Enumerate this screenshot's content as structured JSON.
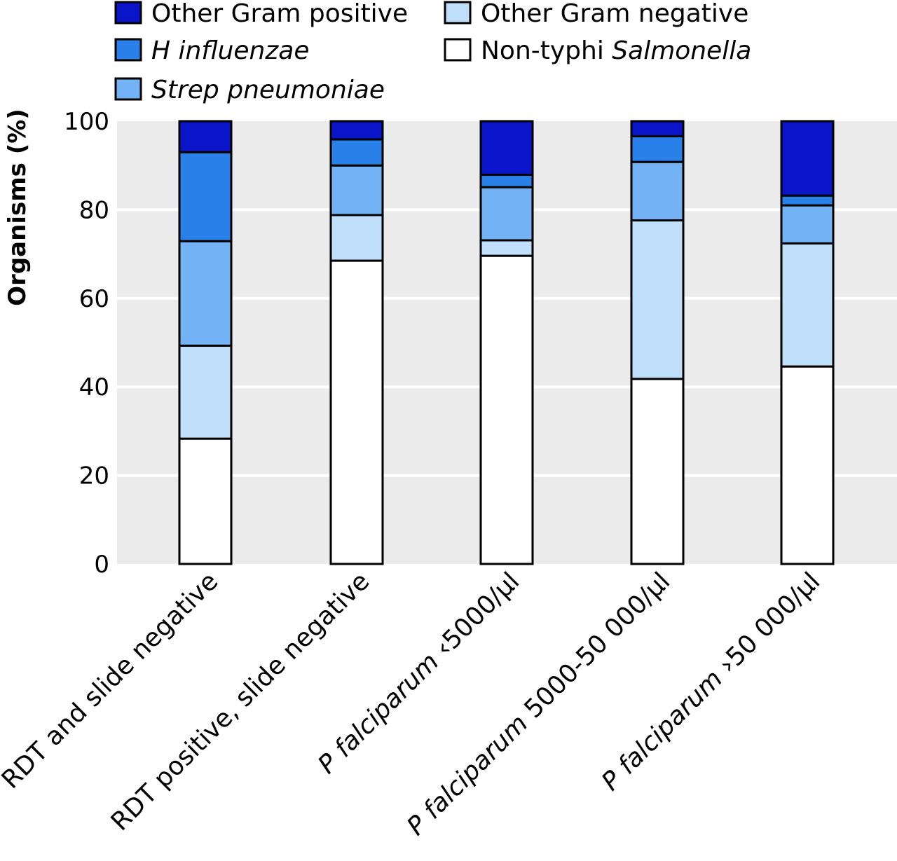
{
  "chart_data": {
    "type": "bar",
    "stacked": true,
    "ylabel": "Organisms (%)",
    "ylim": [
      0,
      100
    ],
    "yticks": [
      0,
      20,
      40,
      60,
      80,
      100
    ],
    "grid": true,
    "legend_position": "top",
    "categories": [
      {
        "label": [
          {
            "text": "RDT and slide negative",
            "italic": false
          }
        ]
      },
      {
        "label": [
          {
            "text": "RDT positive, slide negative",
            "italic": false
          }
        ]
      },
      {
        "label": [
          {
            "text": "P falciparum",
            "italic": true
          },
          {
            "text": " ‹5000/µl",
            "italic": false
          }
        ]
      },
      {
        "label": [
          {
            "text": "P falciparum",
            "italic": true
          },
          {
            "text": " 5000-50 000/µl",
            "italic": false
          }
        ]
      },
      {
        "label": [
          {
            "text": "P falciparum",
            "italic": true
          },
          {
            "text": " ›50 000/µl",
            "italic": false
          }
        ]
      }
    ],
    "series": [
      {
        "name": [
          {
            "text": "Non-typhi ",
            "italic": false
          },
          {
            "text": "Salmonella",
            "italic": true
          }
        ],
        "color": "#ffffff",
        "values": [
          28.3,
          68.5,
          69.6,
          41.8,
          44.6
        ]
      },
      {
        "name": [
          {
            "text": "Other Gram negative",
            "italic": false
          }
        ],
        "color": "#c0dffb",
        "values": [
          21.0,
          10.3,
          3.5,
          35.8,
          27.8
        ]
      },
      {
        "name": [
          {
            "text": "Strep pneumoniae",
            "italic": true
          }
        ],
        "color": "#73b3f5",
        "values": [
          23.6,
          11.2,
          12.0,
          13.2,
          8.6
        ]
      },
      {
        "name": [
          {
            "text": "H influenzae",
            "italic": true
          }
        ],
        "color": "#2880e8",
        "values": [
          20.1,
          5.9,
          2.8,
          5.8,
          2.2
        ]
      },
      {
        "name": [
          {
            "text": "Other Gram positive",
            "italic": false
          }
        ],
        "color": "#0a14c8",
        "values": [
          7.0,
          4.1,
          12.1,
          3.4,
          16.8
        ]
      }
    ],
    "legend_order": [
      4,
      1,
      3,
      0,
      2
    ],
    "plot_background": "#ebebeb",
    "gridline_color": "#ffffff"
  }
}
